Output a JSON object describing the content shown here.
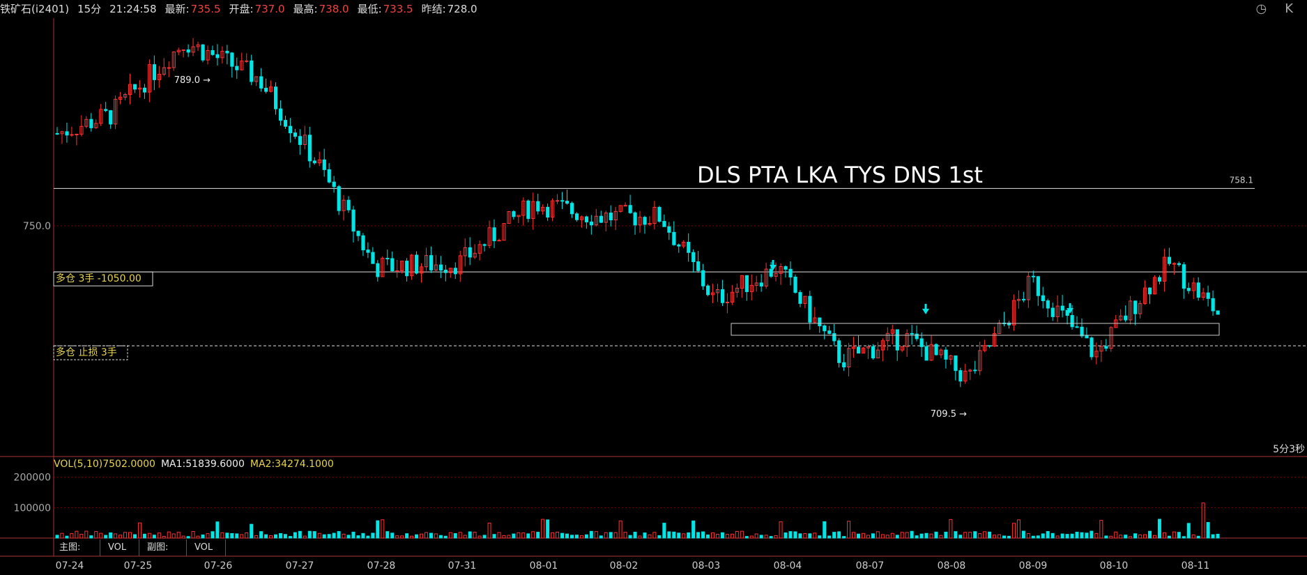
{
  "header": {
    "symbol": "铁矿石(i2401)",
    "period": "15分",
    "time": "21:24:58",
    "latest_label": "最新:",
    "latest_value": "735.5",
    "open_label": "开盘:",
    "open_value": "737.0",
    "high_label": "最高:",
    "high_value": "738.0",
    "low_label": "最低:",
    "low_value": "733.5",
    "prev_close_label": "昨结:",
    "prev_close_value": "728.0"
  },
  "chart_data": {
    "type": "candlestick",
    "dates": [
      "07-24",
      "07-25",
      "07-26",
      "07-27",
      "07-28",
      "07-31",
      "08-01",
      "08-02",
      "08-03",
      "08-04",
      "08-07",
      "08-08",
      "08-09",
      "08-10",
      "08-11"
    ],
    "ylim": [
      700,
      795
    ],
    "price_axis_label": "750.0",
    "annotation_text": "DLS PTA LKA TYS DNS 1st",
    "high_marker": "789.0",
    "low_marker": "709.5",
    "levels": [
      {
        "name": "resistance",
        "price": 758.1,
        "label": "758.1"
      },
      {
        "name": "position",
        "price": 740.0,
        "label": "多仓  3手   -1050.00"
      },
      {
        "name": "stop-loss",
        "price": 724.0,
        "label": "多仓 止损 3手"
      }
    ],
    "countdown": "5分3秒",
    "colors": {
      "up": "#ff3232",
      "down": "#00e5e5",
      "grid": "#8b0000",
      "level": "#e0e0e0",
      "marker": "#00e5e5"
    }
  },
  "volume": {
    "legend_main": "VOL(5,10)7502.0000",
    "legend_ma1": "MA1:51839.6000",
    "legend_ma2": "MA2:34274.1000",
    "ylim": [
      0,
      220000
    ],
    "tick_200k": "200000",
    "tick_100k": "100000"
  },
  "tabs": {
    "main_label": "主图:",
    "main_value": "VOL",
    "sub_label": "副图:",
    "sub_value": "VOL"
  }
}
